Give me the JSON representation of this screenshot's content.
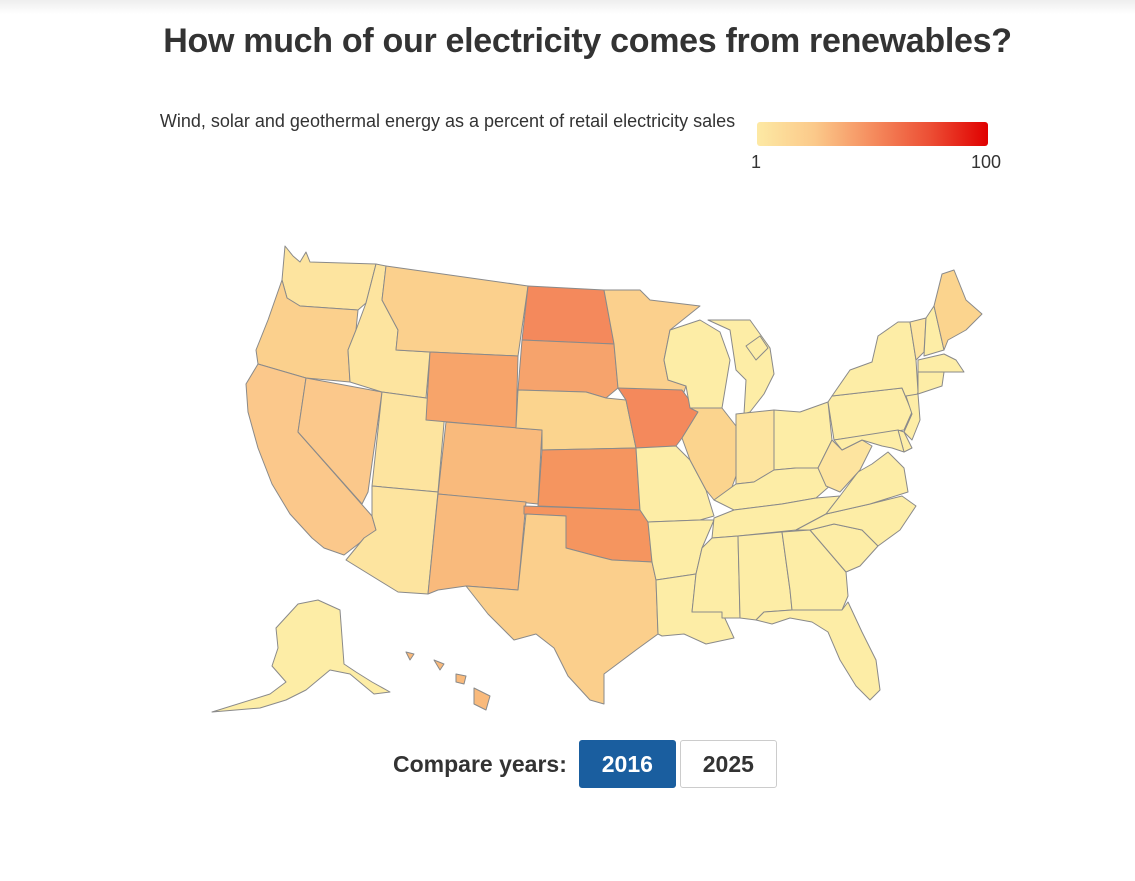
{
  "title": "How much of our electricity comes from renewables?",
  "subtitle": "Wind, solar and geothermal energy as a percent of retail electricity sales",
  "legend": {
    "min_label": "1",
    "max_label": "100",
    "scale_colors": [
      "#fde9a4",
      "#fbc98a",
      "#f58c5e",
      "#ec4e34",
      "#e00000"
    ]
  },
  "map": {
    "region": "United States",
    "border_color": "#8a8a8a",
    "states": [
      {
        "name": "Washington",
        "color": "#fde49f"
      },
      {
        "name": "Oregon",
        "color": "#fbd08d"
      },
      {
        "name": "California",
        "color": "#fbc88b"
      },
      {
        "name": "Idaho",
        "color": "#fde49f"
      },
      {
        "name": "Nevada",
        "color": "#fbc88b"
      },
      {
        "name": "Utah",
        "color": "#fde49f"
      },
      {
        "name": "Arizona",
        "color": "#fde49f"
      },
      {
        "name": "Montana",
        "color": "#fbd08d"
      },
      {
        "name": "Wyoming",
        "color": "#f7a46a"
      },
      {
        "name": "Colorado",
        "color": "#f9ba7c"
      },
      {
        "name": "New Mexico",
        "color": "#f9ba7c"
      },
      {
        "name": "North Dakota",
        "color": "#f4895c"
      },
      {
        "name": "South Dakota",
        "color": "#f6a36c"
      },
      {
        "name": "Nebraska",
        "color": "#fbd48e"
      },
      {
        "name": "Kansas",
        "color": "#f5955f"
      },
      {
        "name": "Oklahoma",
        "color": "#f5955f"
      },
      {
        "name": "Texas",
        "color": "#fbcf8c"
      },
      {
        "name": "Minnesota",
        "color": "#fbd08d"
      },
      {
        "name": "Iowa",
        "color": "#f4895c"
      },
      {
        "name": "Missouri",
        "color": "#fdeda6"
      },
      {
        "name": "Arkansas",
        "color": "#fdeda6"
      },
      {
        "name": "Louisiana",
        "color": "#fdeda6"
      },
      {
        "name": "Wisconsin",
        "color": "#fdeda6"
      },
      {
        "name": "Illinois",
        "color": "#fbd48e"
      },
      {
        "name": "Michigan",
        "color": "#fdeda6"
      },
      {
        "name": "Indiana",
        "color": "#fde49f"
      },
      {
        "name": "Ohio",
        "color": "#fdeda6"
      },
      {
        "name": "Kentucky",
        "color": "#fdeda6"
      },
      {
        "name": "Tennessee",
        "color": "#fdeda6"
      },
      {
        "name": "Mississippi",
        "color": "#fdeda6"
      },
      {
        "name": "Alabama",
        "color": "#fdeda6"
      },
      {
        "name": "Georgia",
        "color": "#fdeda6"
      },
      {
        "name": "Florida",
        "color": "#fdeda6"
      },
      {
        "name": "South Carolina",
        "color": "#fdeda6"
      },
      {
        "name": "North Carolina",
        "color": "#fdeda6"
      },
      {
        "name": "Virginia",
        "color": "#fdeda6"
      },
      {
        "name": "West Virginia",
        "color": "#fde49f"
      },
      {
        "name": "Pennsylvania",
        "color": "#fdeda6"
      },
      {
        "name": "New York",
        "color": "#fdeda6"
      },
      {
        "name": "Vermont",
        "color": "#fde49f"
      },
      {
        "name": "New Hampshire",
        "color": "#fdeda6"
      },
      {
        "name": "Maine",
        "color": "#fbd48e"
      },
      {
        "name": "Massachusetts",
        "color": "#fdeda6"
      },
      {
        "name": "Connecticut",
        "color": "#fdeda6"
      },
      {
        "name": "New Jersey",
        "color": "#fdeda6"
      },
      {
        "name": "Delaware",
        "color": "#fdeda6"
      },
      {
        "name": "Maryland",
        "color": "#fdeda6"
      },
      {
        "name": "Alaska",
        "color": "#fdeda6"
      },
      {
        "name": "Hawaii",
        "color": "#f9ba7c"
      }
    ]
  },
  "controls": {
    "compare_label": "Compare years:",
    "years": [
      {
        "label": "2016",
        "active": true
      },
      {
        "label": "2025",
        "active": false
      }
    ]
  }
}
